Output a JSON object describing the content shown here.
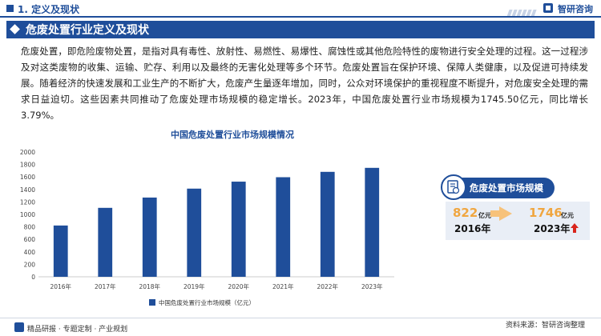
{
  "header": {
    "section": "1. 定义及现状",
    "brand": "智研咨询"
  },
  "banner": {
    "title": "危废处置行业定义及现状"
  },
  "description": "危废处置，即危险废物处置，是指对具有毒性、放射性、易燃性、易爆性、腐蚀性或其他危险特性的废物进行安全处理的过程。这一过程涉及对这类废物的收集、运输、贮存、利用以及最终的无害化处理等多个环节。危废处置旨在保护环境、保障人类健康，以及促进可持续发展。随着经济的快速发展和工业生产的不断扩大，危废产生量逐年增加，同时，公众对环境保护的重视程度不断提升，对危废安全处理的需求日益迫切。这些因素共同推动了危废处理市场规模的稳定增长。2023年，中国危废处置行业市场规模为1745.50亿元，同比增长3.79%。",
  "chart_data": {
    "type": "bar",
    "title": "中国危废处置行业市场规模情况",
    "categories": [
      "2016年",
      "2017年",
      "2018年",
      "2019年",
      "2020年",
      "2021年",
      "2022年",
      "2023年"
    ],
    "series": [
      {
        "name": "中国危废处置行业市场规模（亿元）",
        "values": [
          822,
          1105,
          1270,
          1413,
          1525,
          1596,
          1682,
          1746
        ]
      }
    ],
    "yticks": [
      0,
      200,
      400,
      600,
      800,
      1000,
      1200,
      1400,
      1600,
      1800,
      2000
    ],
    "ylim": [
      0,
      2000
    ],
    "grid": false,
    "legend": "bottom",
    "bar_color": "#1f4e9a"
  },
  "panel": {
    "title": "危废处置市场规模",
    "start_value": "822",
    "start_unit": "亿元",
    "start_year": "2016年",
    "end_value": "1746",
    "end_unit": "亿元",
    "end_year": "2023年"
  },
  "footer": {
    "slogan": "精品研报 · 专题定制 · 产业规划",
    "source": "资料来源：智研咨询整理"
  },
  "colors": {
    "accent": "#1f4e9a",
    "highlight": "#f0a640",
    "up": "#d9251c"
  }
}
